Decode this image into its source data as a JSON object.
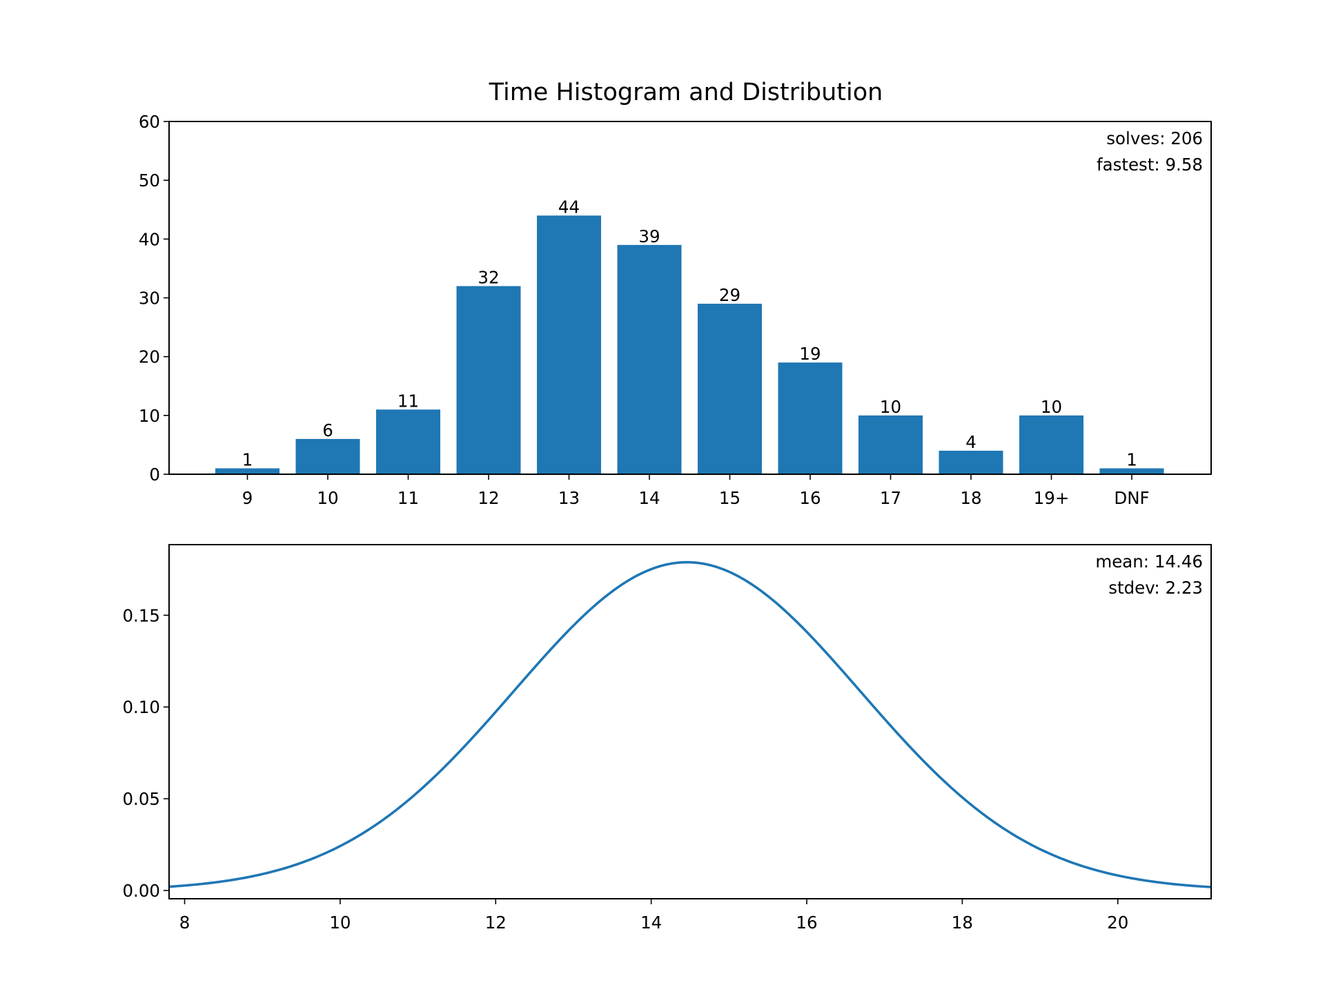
{
  "title": "Time Histogram and Distribution",
  "chart_data": [
    {
      "type": "bar",
      "categories": [
        "9",
        "10",
        "11",
        "12",
        "13",
        "14",
        "15",
        "16",
        "17",
        "18",
        "19+",
        "DNF"
      ],
      "values": [
        1,
        6,
        11,
        32,
        44,
        39,
        29,
        19,
        10,
        4,
        10,
        1
      ],
      "data_labels": [
        "1",
        "6",
        "11",
        "32",
        "44",
        "39",
        "29",
        "19",
        "10",
        "4",
        "10",
        "1"
      ],
      "ylim": [
        0,
        60
      ],
      "yticks": [
        0,
        10,
        20,
        30,
        40,
        50,
        60
      ],
      "color": "#1f77b4",
      "annotations": [
        "solves: 206",
        "fastest: 9.58"
      ],
      "annotation_placement": "top-right",
      "grid": false
    },
    {
      "type": "line",
      "series": [
        {
          "distribution": "normal",
          "mean": 14.46,
          "stdev": 2.23,
          "color": "#1f77b4"
        }
      ],
      "xlim": [
        7.8,
        21.2
      ],
      "ylim": [
        -0.0045,
        0.1885
      ],
      "xticks": [
        8,
        10,
        12,
        14,
        16,
        18,
        20
      ],
      "yticks": [
        0.0,
        0.05,
        0.1,
        0.15
      ],
      "ytick_labels": [
        "0.00",
        "0.05",
        "0.10",
        "0.15"
      ],
      "annotations": [
        "mean: 14.46",
        "stdev: 2.23"
      ],
      "annotation_placement": "top-right",
      "grid": false
    }
  ]
}
